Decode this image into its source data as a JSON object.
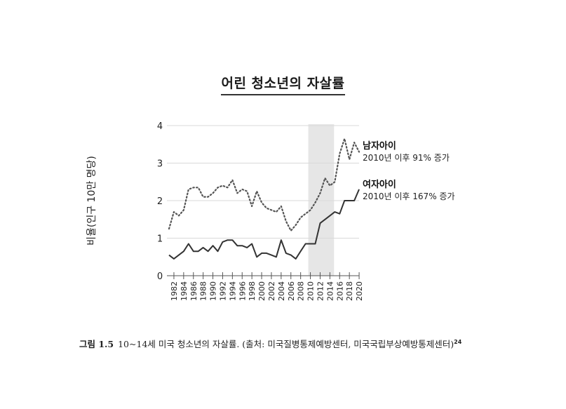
{
  "title": "어린 청소년의 자살률",
  "chart_data": {
    "type": "line",
    "title": "어린 청소년의 자살률",
    "xlabel": "",
    "ylabel": "비율(인구 10만 명당)",
    "ylim": [
      0,
      4
    ],
    "yticks": [
      0,
      1,
      2,
      3,
      4
    ],
    "grid": true,
    "x_tick_labels": [
      "1982",
      "1984",
      "1986",
      "1988",
      "1990",
      "1992",
      "1994",
      "1996",
      "1998",
      "2000",
      "2002",
      "2004",
      "2006",
      "2008",
      "2010",
      "2012",
      "2014",
      "2016",
      "2018",
      "2020"
    ],
    "x": [
      1981,
      1982,
      1983,
      1984,
      1985,
      1986,
      1987,
      1988,
      1989,
      1990,
      1991,
      1992,
      1993,
      1994,
      1995,
      1996,
      1997,
      1998,
      1999,
      2000,
      2001,
      2002,
      2003,
      2004,
      2005,
      2006,
      2007,
      2008,
      2009,
      2010,
      2011,
      2012,
      2013,
      2014,
      2015,
      2016,
      2017,
      2018,
      2019,
      2020
    ],
    "shaded_region": {
      "x_start": 2010,
      "x_end": 2015,
      "color": "#e6e6e6"
    },
    "series": [
      {
        "name": "남자아이",
        "annotation": "2010년 이후 91% 증가",
        "style": "dotted",
        "color": "#555555",
        "values": [
          1.25,
          1.7,
          1.6,
          1.75,
          2.3,
          2.35,
          2.35,
          2.1,
          2.1,
          2.2,
          2.35,
          2.4,
          2.35,
          2.55,
          2.2,
          2.3,
          2.25,
          1.85,
          2.25,
          1.95,
          1.8,
          1.75,
          1.7,
          1.85,
          1.45,
          1.2,
          1.35,
          1.55,
          1.65,
          1.75,
          1.95,
          2.2,
          2.6,
          2.4,
          2.5,
          3.25,
          3.65,
          3.1,
          3.55,
          3.3
        ]
      },
      {
        "name": "여자아이",
        "annotation": "2010년 이후 167% 증가",
        "style": "solid",
        "color": "#333333",
        "values": [
          0.55,
          0.45,
          0.55,
          0.65,
          0.85,
          0.65,
          0.65,
          0.75,
          0.65,
          0.8,
          0.65,
          0.9,
          0.95,
          0.95,
          0.8,
          0.8,
          0.75,
          0.85,
          0.5,
          0.6,
          0.6,
          0.55,
          0.5,
          0.95,
          0.6,
          0.55,
          0.45,
          0.65,
          0.85,
          0.85,
          0.85,
          1.4,
          1.5,
          1.6,
          1.7,
          1.65,
          2.0,
          2.0,
          2.0,
          2.3
        ]
      }
    ],
    "legend_position": "right-inline"
  },
  "legend": {
    "boys": {
      "name": "남자아이",
      "note": "2010년 이후 91% 증가"
    },
    "girls": {
      "name": "여자아이",
      "note": "2010년 이후 167% 증가"
    }
  },
  "caption": {
    "figure_label": "그림 1.5",
    "text": "10~14세 미국 청소년의 자살률. (출처: 미국질병통제예방센터, 미국국립부상예방통제센터)",
    "footnote": "24"
  }
}
